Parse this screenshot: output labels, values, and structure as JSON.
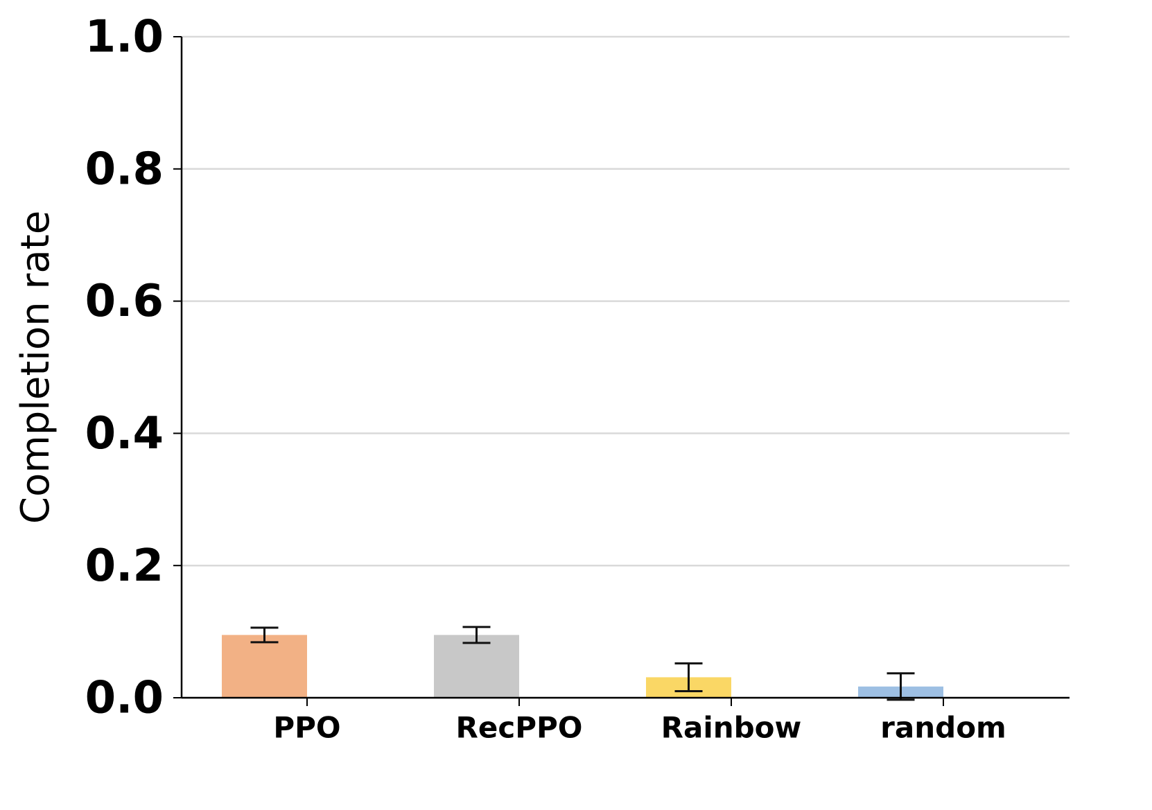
{
  "chart_data": {
    "type": "bar",
    "y_label": "Completion rate",
    "categories": [
      "PPO",
      "RecPPO",
      "Rainbow",
      "random"
    ],
    "series": [
      {
        "colors": [
          "#f2b185",
          "#c8c8c8",
          "#fad765",
          "#9dbfe3"
        ],
        "values": [
          0.095,
          0.095,
          0.031,
          0.017
        ],
        "errors": [
          0.011,
          0.012,
          0.021,
          0.02
        ]
      },
      {
        "values": [
          0,
          0,
          0,
          0
        ]
      }
    ],
    "ylim": [
      0,
      1.0
    ],
    "yticks": [
      {
        "value": 0,
        "label": "0.0"
      },
      0.2,
      0.4,
      0.6,
      0.8,
      {
        "value": 1,
        "label": "1.0"
      }
    ],
    "grid": true
  }
}
